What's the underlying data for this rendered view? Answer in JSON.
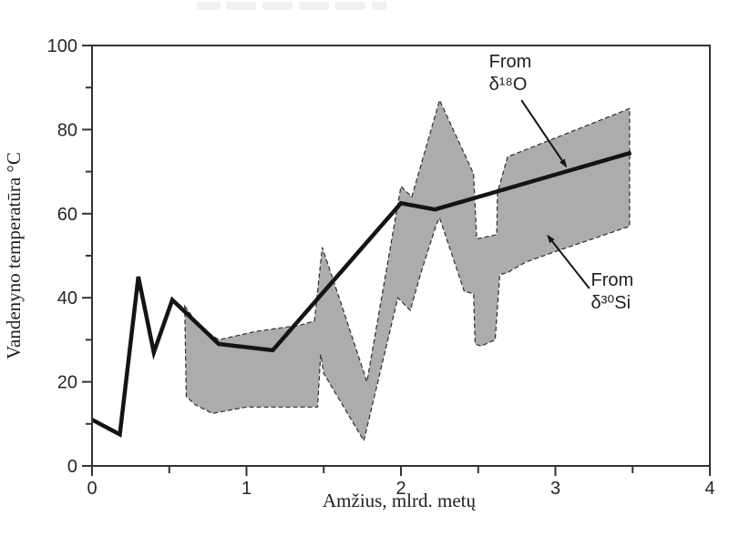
{
  "figure": {
    "xlabel": "Amžius, mlrd. metų",
    "ylabel": "Vandenyno temperatūra °C"
  },
  "chart_data": {
    "type": "line",
    "title": "",
    "xlabel": "Amžius, mlrd. metų",
    "ylabel": "Vandenyno temperatūra °C",
    "xlim": [
      0,
      4
    ],
    "ylim": [
      0,
      100
    ],
    "grid": false,
    "legend_position": "inline-annotations",
    "x_major_ticks": [
      0,
      1,
      2,
      3,
      4
    ],
    "x_minor_ticks": [
      0.5,
      1.5,
      2.5,
      3.5
    ],
    "y_major_ticks": [
      0,
      20,
      40,
      60,
      80,
      100
    ],
    "y_minor_ticks": [
      10,
      30,
      50,
      70,
      90
    ],
    "colors": {
      "line": "#141414",
      "band_fill": "#acacac",
      "band_edge": "#2e2e2e",
      "axis": "#333333",
      "text": "#262626",
      "title_remnant": "#f1f1f1"
    },
    "series": [
      {
        "name": "From δ¹⁸O",
        "kind": "line",
        "points": [
          [
            0,
            11
          ],
          [
            0.18,
            7.5
          ],
          [
            0.3,
            45
          ],
          [
            0.4,
            27
          ],
          [
            0.52,
            39.5
          ],
          [
            0.82,
            29
          ],
          [
            1.17,
            27.5
          ],
          [
            2.0,
            62.5
          ],
          [
            2.22,
            61
          ],
          [
            3.49,
            74.5
          ]
        ]
      },
      {
        "name": "From δ³⁰Si",
        "kind": "band",
        "upper": [
          [
            0.6,
            38
          ],
          [
            0.7,
            33
          ],
          [
            0.82,
            30
          ],
          [
            1.06,
            32
          ],
          [
            1.35,
            33.5
          ],
          [
            1.44,
            34.5
          ],
          [
            1.49,
            52
          ],
          [
            1.6,
            40
          ],
          [
            1.78,
            20
          ],
          [
            2.0,
            66.5
          ],
          [
            2.07,
            64
          ],
          [
            2.25,
            87
          ],
          [
            2.47,
            69.5
          ],
          [
            2.49,
            54
          ],
          [
            2.62,
            55
          ],
          [
            2.625,
            65
          ],
          [
            2.69,
            73.5
          ],
          [
            3.48,
            85
          ]
        ],
        "lower": [
          [
            0.61,
            16.5
          ],
          [
            0.67,
            14.5
          ],
          [
            0.78,
            12.5
          ],
          [
            1.0,
            14
          ],
          [
            1.46,
            14
          ],
          [
            1.48,
            26.5
          ],
          [
            1.5,
            22
          ],
          [
            1.76,
            6
          ],
          [
            1.98,
            40
          ],
          [
            2.06,
            37
          ],
          [
            2.13,
            46
          ],
          [
            2.23,
            57.5
          ],
          [
            2.25,
            59
          ],
          [
            2.41,
            41.5
          ],
          [
            2.47,
            41
          ],
          [
            2.48,
            29
          ],
          [
            2.52,
            28.5
          ],
          [
            2.61,
            30
          ],
          [
            2.64,
            45.5
          ],
          [
            2.69,
            46
          ],
          [
            2.81,
            48.5
          ],
          [
            3.04,
            51.5
          ],
          [
            3.48,
            57
          ]
        ]
      }
    ],
    "annotations": [
      {
        "lines": [
          "From",
          "δ¹⁸O"
        ],
        "x": 2.57,
        "y": 98.5,
        "arrow_from": [
          2.78,
          87.0
        ],
        "arrow_to": [
          3.07,
          71.2
        ]
      },
      {
        "lines": [
          "From",
          "δ³⁰Si"
        ],
        "x": 3.23,
        "y": 46.5,
        "arrow_from": [
          3.22,
          42.2
        ],
        "arrow_to": [
          2.95,
          54.8
        ]
      }
    ]
  }
}
